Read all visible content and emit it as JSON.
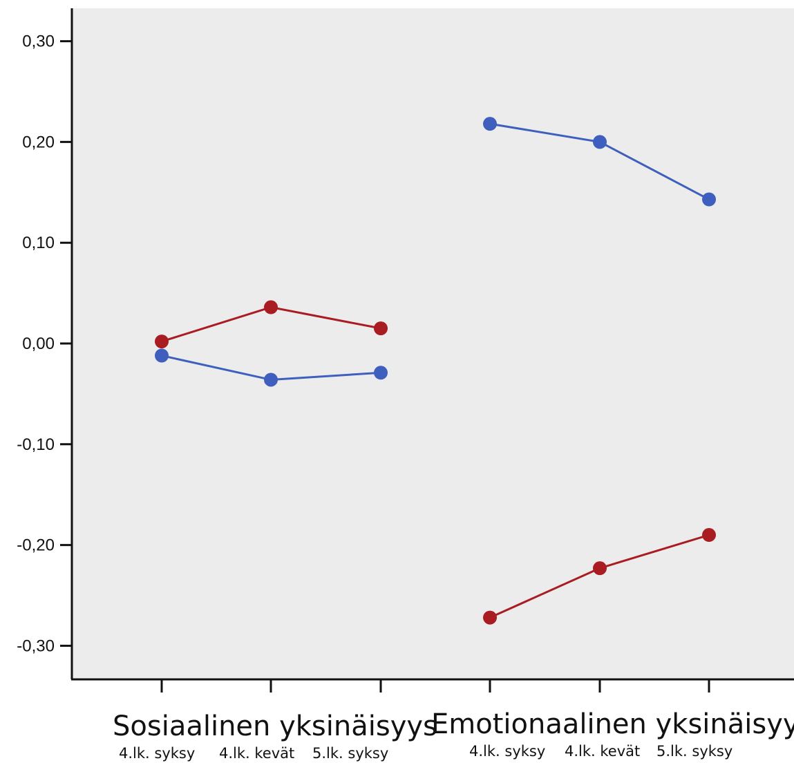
{
  "chart_data": {
    "type": "line",
    "title": "",
    "xlabel": "",
    "ylabel": "",
    "ylim": [
      -0.33,
      0.3
    ],
    "yticks": [
      0.3,
      0.2,
      0.1,
      0.0,
      -0.1,
      -0.2,
      -0.3
    ],
    "ytick_labels": [
      "0,30",
      "0,20",
      "0,10",
      "0,00",
      "-0,10",
      "-0,20",
      "-0,30"
    ],
    "grid": false,
    "groups": [
      {
        "label": "Sosiaalinen yksinäisyys",
        "categories": [
          "4.lk. syksy",
          "4.lk. kevät",
          "5.lk. syksy"
        ]
      },
      {
        "label": "Emotionaalinen yksinäisyys",
        "categories": [
          "4.lk. syksy",
          "4.lk. kevät",
          "5.lk. syksy"
        ]
      }
    ],
    "series": [
      {
        "color": "#3f5fbf",
        "group": 0,
        "values": [
          -0.012,
          -0.036,
          -0.029
        ]
      },
      {
        "color": "#a81c22",
        "group": 0,
        "values": [
          0.002,
          0.036,
          0.015
        ]
      },
      {
        "color": "#3f5fbf",
        "group": 1,
        "values": [
          0.218,
          0.2,
          0.143
        ]
      },
      {
        "color": "#a81c22",
        "group": 1,
        "values": [
          -0.272,
          -0.223,
          -0.19
        ]
      }
    ],
    "plot_background": "#ececec"
  }
}
